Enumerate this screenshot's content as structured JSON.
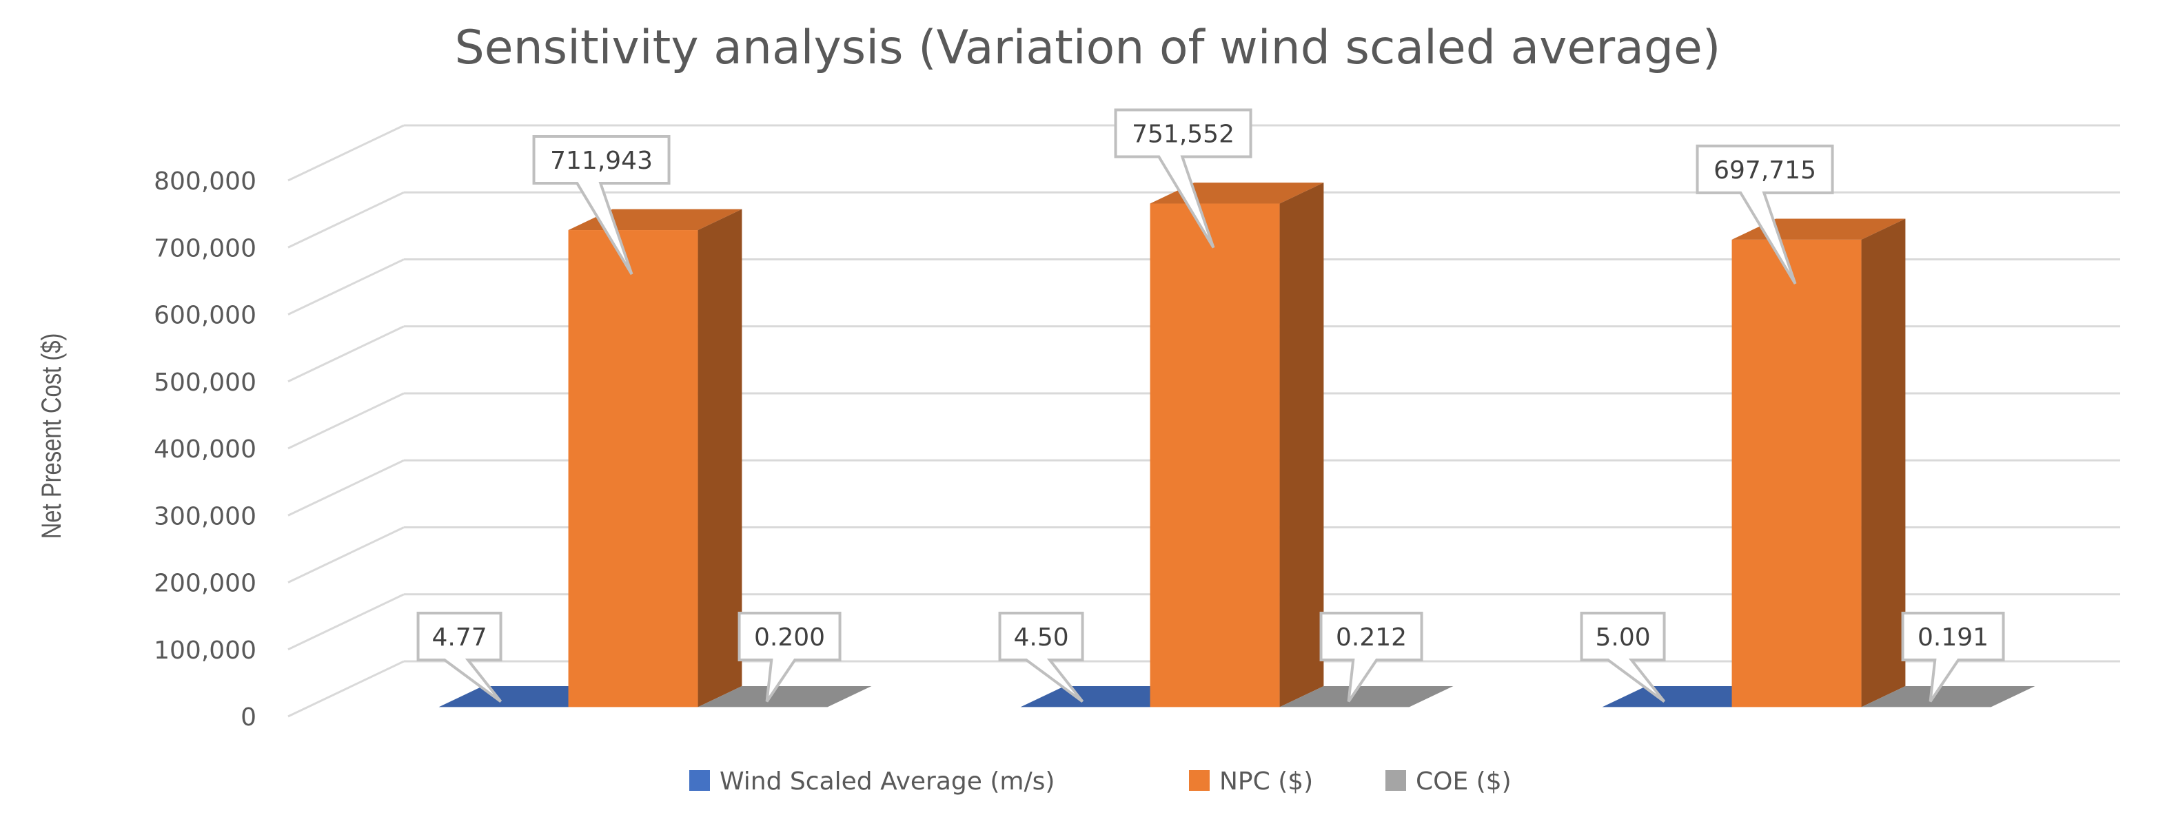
{
  "chart_data": {
    "type": "bar",
    "title": "Sensitivity analysis (Variation of wind scaled average)",
    "ylabel": "Net Present Cost ($)",
    "xlabel": "",
    "ylim": [
      0,
      800000
    ],
    "yticks": [
      "0",
      "100,000",
      "200,000",
      "300,000",
      "400,000",
      "500,000",
      "600,000",
      "700,000",
      "800,000"
    ],
    "categories": [
      "",
      "",
      ""
    ],
    "series": [
      {
        "name": "Wind Scaled Average (m/s)",
        "color": "#4472c4",
        "values": [
          4.77,
          4.5,
          5.0
        ],
        "labels": [
          "4.77",
          "4.50",
          "5.00"
        ]
      },
      {
        "name": "NPC ($)",
        "color": "#ed7d31",
        "values": [
          711943,
          751552,
          697715
        ],
        "labels": [
          "711,943",
          "751,552",
          "697,715"
        ]
      },
      {
        "name": "COE ($)",
        "color": "#a5a5a5",
        "values": [
          0.2,
          0.212,
          0.191
        ],
        "labels": [
          "0.200",
          "0.212",
          "0.191"
        ]
      }
    ],
    "grid": true,
    "legend_position": "bottom",
    "style": "3d-column"
  }
}
